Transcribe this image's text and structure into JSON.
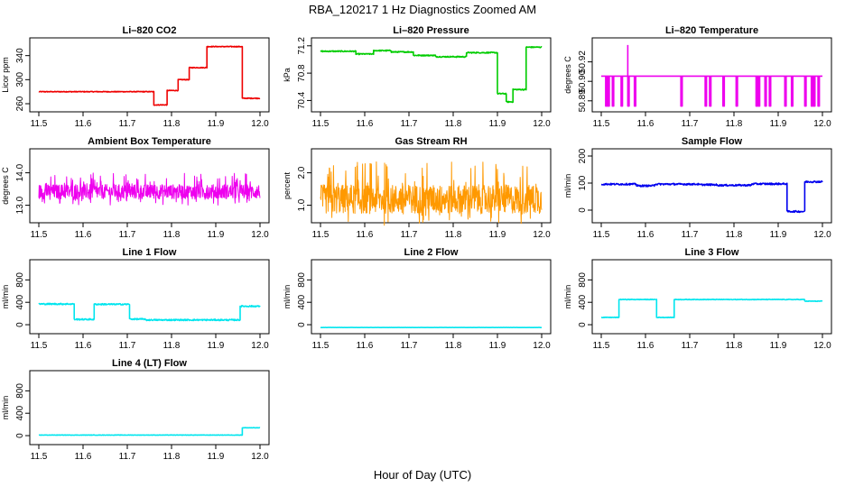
{
  "figure": {
    "title": "RBA_120217  1 Hz Diagnostics Zoomed AM",
    "xlabel": "Hour of Day (UTC)"
  },
  "chart_data": [
    {
      "type": "line",
      "title": "Li–820 CO2",
      "ylabel": "Licor ppm",
      "color": "#ee0000",
      "xlim": [
        11.5,
        12.0
      ],
      "ylim": [
        254,
        362
      ],
      "xticks": [
        "11.5",
        "11.6",
        "11.7",
        "11.8",
        "11.9",
        "12.0"
      ],
      "yticks": [
        {
          "value": 260,
          "label": "260"
        },
        {
          "value": 300,
          "label": "300"
        },
        {
          "value": 340,
          "label": "340"
        }
      ],
      "noise": 0.6,
      "segments": [
        [
          11.5,
          11.76,
          280
        ],
        [
          11.76,
          11.79,
          258
        ],
        [
          11.79,
          11.815,
          282
        ],
        [
          11.815,
          11.84,
          300
        ],
        [
          11.84,
          11.88,
          320
        ],
        [
          11.88,
          11.96,
          355
        ],
        [
          11.96,
          12.0,
          269
        ]
      ]
    },
    {
      "type": "line",
      "title": "Li–820 Pressure",
      "ylabel": "kPa",
      "color": "#00cc00",
      "xlim": [
        11.5,
        12.0
      ],
      "ylim": [
        70.3,
        71.25
      ],
      "xticks": [
        "11.5",
        "11.6",
        "11.7",
        "11.8",
        "11.9",
        "12.0"
      ],
      "yticks": [
        {
          "value": 70.4,
          "label": "70.4"
        },
        {
          "value": 70.8,
          "label": "70.8"
        },
        {
          "value": 71.2,
          "label": "71.2"
        }
      ],
      "noise": 0.008,
      "segments": [
        [
          11.5,
          11.58,
          71.12
        ],
        [
          11.58,
          11.62,
          71.08
        ],
        [
          11.62,
          11.66,
          71.13
        ],
        [
          11.66,
          11.71,
          71.11
        ],
        [
          11.71,
          11.76,
          71.06
        ],
        [
          11.76,
          11.83,
          71.04
        ],
        [
          11.83,
          11.9,
          71.1
        ],
        [
          11.9,
          11.92,
          70.5
        ],
        [
          11.92,
          11.935,
          70.38
        ],
        [
          11.935,
          11.965,
          70.56
        ],
        [
          11.965,
          12.0,
          71.18
        ]
      ]
    },
    {
      "type": "line",
      "title": "Li–820 Temperature",
      "ylabel": "degrees C",
      "color": "#ee00ee",
      "xlim": [
        11.5,
        12.0
      ],
      "ylim": [
        50.885,
        50.935
      ],
      "xticks": [
        "11.5",
        "11.6",
        "11.7",
        "11.8",
        "11.9",
        "12.0"
      ],
      "yticks": [
        {
          "value": 50.89,
          "label": "50.89"
        },
        {
          "value": 50.905,
          "label": "50.90"
        },
        {
          "value": 50.92,
          "label": "50.92"
        }
      ],
      "base": 50.909,
      "low": 50.886,
      "spike_x": 11.56,
      "spike_value": 50.933,
      "dips": [
        11.51,
        11.515,
        11.525,
        11.545,
        11.56,
        11.575,
        11.68,
        11.735,
        11.745,
        11.775,
        11.805,
        11.85,
        11.855,
        11.87,
        11.88,
        11.915,
        11.93,
        11.96,
        11.975,
        11.98,
        11.99
      ]
    },
    {
      "type": "line",
      "title": "Ambient Box Temperature",
      "ylabel": "degrees C",
      "color": "#ee00ee",
      "xlim": [
        11.5,
        12.0
      ],
      "ylim": [
        12.6,
        14.6
      ],
      "xticks": [
        "11.5",
        "11.6",
        "11.7",
        "11.8",
        "11.9",
        "12.0"
      ],
      "yticks": [
        {
          "value": 13.0,
          "label": "13.0"
        },
        {
          "value": 14.0,
          "label": "14.0"
        }
      ],
      "center": 13.35,
      "amp": 0.45
    },
    {
      "type": "line",
      "title": "Gas Stream RH",
      "ylabel": "percent",
      "color": "#ff9900",
      "xlim": [
        11.5,
        12.0
      ],
      "ylim": [
        0.6,
        2.6
      ],
      "xticks": [
        "11.5",
        "11.6",
        "11.7",
        "11.8",
        "11.9",
        "12.0"
      ],
      "yticks": [
        {
          "value": 1.0,
          "label": "1.0"
        },
        {
          "value": 2.0,
          "label": "2.0"
        }
      ],
      "center": 1.05,
      "amp": 0.9
    },
    {
      "type": "line",
      "title": "Sample Flow",
      "ylabel": "ml/min",
      "color": "#0000ee",
      "xlim": [
        11.5,
        12.0
      ],
      "ylim": [
        -30,
        210
      ],
      "xticks": [
        "11.5",
        "11.6",
        "11.7",
        "11.8",
        "11.9",
        "12.0"
      ],
      "yticks": [
        {
          "value": 0,
          "label": "0"
        },
        {
          "value": 100,
          "label": "100"
        },
        {
          "value": 200,
          "label": "200"
        }
      ],
      "noise": 3,
      "segments": [
        [
          11.5,
          11.58,
          96
        ],
        [
          11.58,
          11.62,
          90
        ],
        [
          11.62,
          11.72,
          96
        ],
        [
          11.72,
          11.76,
          94
        ],
        [
          11.76,
          11.84,
          92
        ],
        [
          11.84,
          11.92,
          97
        ],
        [
          11.92,
          11.96,
          -5
        ],
        [
          11.96,
          12.0,
          105
        ]
      ]
    },
    {
      "type": "line",
      "title": "Line 1 Flow",
      "ylabel": "ml/min",
      "color": "#00e5ee",
      "xlim": [
        11.5,
        12.0
      ],
      "ylim": [
        -80,
        1080
      ],
      "xticks": [
        "11.5",
        "11.6",
        "11.7",
        "11.8",
        "11.9",
        "12.0"
      ],
      "yticks": [
        {
          "value": 0,
          "label": "0"
        },
        {
          "value": 400,
          "label": "400"
        },
        {
          "value": 800,
          "label": "800"
        }
      ],
      "noise": 12,
      "segments": [
        [
          11.5,
          11.58,
          370
        ],
        [
          11.58,
          11.625,
          95
        ],
        [
          11.625,
          11.705,
          365
        ],
        [
          11.705,
          11.74,
          100
        ],
        [
          11.74,
          11.955,
          85
        ],
        [
          11.955,
          12.0,
          330
        ]
      ]
    },
    {
      "type": "line",
      "title": "Line 2 Flow",
      "ylabel": "ml/min",
      "color": "#00e5ee",
      "xlim": [
        11.5,
        12.0
      ],
      "ylim": [
        -80,
        1080
      ],
      "xticks": [
        "11.5",
        "11.6",
        "11.7",
        "11.8",
        "11.9",
        "12.0"
      ],
      "yticks": [
        {
          "value": 0,
          "label": "0"
        },
        {
          "value": 400,
          "label": "400"
        },
        {
          "value": 800,
          "label": "800"
        }
      ],
      "noise": 1,
      "segments": [
        [
          11.5,
          12.0,
          -50
        ]
      ]
    },
    {
      "type": "line",
      "title": "Line 3 Flow",
      "ylabel": "ml/min",
      "color": "#00e5ee",
      "xlim": [
        11.5,
        12.0
      ],
      "ylim": [
        -80,
        1080
      ],
      "xticks": [
        "11.5",
        "11.6",
        "11.7",
        "11.8",
        "11.9",
        "12.0"
      ],
      "yticks": [
        {
          "value": 0,
          "label": "0"
        },
        {
          "value": 400,
          "label": "400"
        },
        {
          "value": 800,
          "label": "800"
        }
      ],
      "noise": 5,
      "segments": [
        [
          11.5,
          11.54,
          130
        ],
        [
          11.54,
          11.625,
          450
        ],
        [
          11.625,
          11.665,
          130
        ],
        [
          11.665,
          11.96,
          450
        ],
        [
          11.96,
          12.0,
          420
        ]
      ]
    },
    {
      "type": "line",
      "title": "Line 4 (LT) Flow",
      "ylabel": "ml/min",
      "color": "#00e5ee",
      "xlim": [
        11.5,
        12.0
      ],
      "ylim": [
        -80,
        1080
      ],
      "xticks": [
        "11.5",
        "11.6",
        "11.7",
        "11.8",
        "11.9",
        "12.0"
      ],
      "yticks": [
        {
          "value": 0,
          "label": "0"
        },
        {
          "value": 400,
          "label": "400"
        },
        {
          "value": 800,
          "label": "800"
        }
      ],
      "noise": 3,
      "segments": [
        [
          11.5,
          11.96,
          10
        ],
        [
          11.96,
          12.0,
          140
        ]
      ]
    }
  ]
}
